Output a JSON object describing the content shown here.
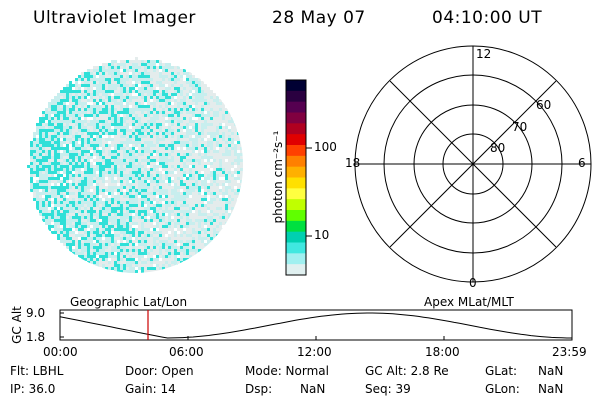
{
  "header": {
    "instrument": "Ultraviolet Imager",
    "date": "28 May 07",
    "time": "04:10:00 UT"
  },
  "colorbar": {
    "unit_label": "photon cm⁻²s⁻¹",
    "ticks": [
      "100",
      "10"
    ],
    "colors": [
      "#000033",
      "#2a0040",
      "#550050",
      "#800040",
      "#b00020",
      "#e00000",
      "#ff4000",
      "#ff8000",
      "#ffb000",
      "#ffe000",
      "#ffff40",
      "#c0ff00",
      "#60ff00",
      "#00e040",
      "#00d0b0",
      "#40e8e0",
      "#a0f0f0",
      "#e0f0f0"
    ]
  },
  "polar": {
    "mlt_labels": {
      "top": "12",
      "bottom": "0",
      "left": "18",
      "right": "6"
    },
    "lat_labels": [
      "60",
      "70",
      "80"
    ]
  },
  "timeline": {
    "left_title": "Geographic Lat/Lon",
    "right_title": "Apex MLat/MLT",
    "axis_label": "GC Alt",
    "y_ticks": [
      "9.0",
      "1.8"
    ],
    "x_ticks": [
      "00:00",
      "06:00",
      "12:00",
      "18:00",
      "23:59"
    ],
    "marker_color": "#cc0000"
  },
  "status": {
    "flt": "Flt: LBHL",
    "door": "Door: Open",
    "mode": "Mode: Normal",
    "gc_alt": "GC Alt: 2.8 Re",
    "glat_label": "GLat:",
    "glat_value": "NaN",
    "ip": "IP: 36.0",
    "gain": "Gain: 14",
    "dsp_label": "Dsp:",
    "dsp_value": "NaN",
    "seq": "Seq: 39",
    "glon_label": "GLon:",
    "glon_value": "NaN"
  },
  "image_colors": {
    "cyan": "#30e0d8",
    "light": "#c8eeee",
    "pale": "#e4ecec"
  }
}
